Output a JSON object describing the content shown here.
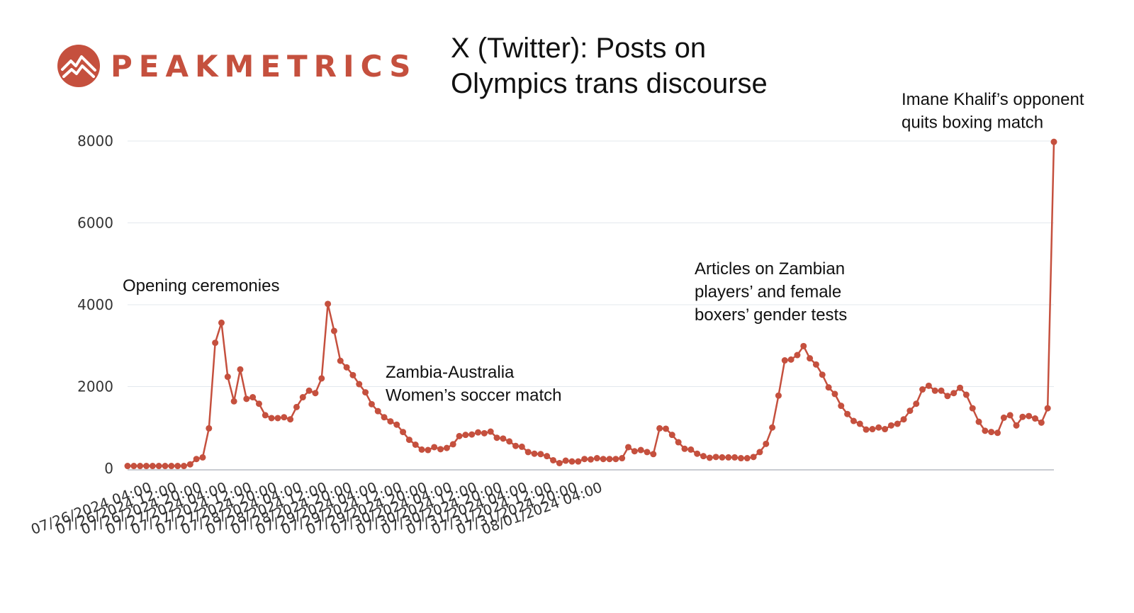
{
  "brand": {
    "name": "PEAKMETRICS",
    "logo_icon": "mountain-peak-icon",
    "accent_color": "#c5503e"
  },
  "chart_data": {
    "type": "line",
    "title_lines": [
      "X (Twitter): Posts on",
      "Olympics trans discourse"
    ],
    "xlabel": "",
    "ylabel": "",
    "ylim": [
      0,
      8000
    ],
    "y_ticks": [
      0,
      2000,
      4000,
      6000,
      8000
    ],
    "x_start": "07/26/2024 04:00",
    "x_step_hours": 2,
    "x_tick_labels": [
      "07/26/2024 04:00",
      "07/26/2024 12:00",
      "07/26/2024 20:00",
      "07/27/2024 04:00",
      "07/27/2024 12:00",
      "07/27/2024 20:00",
      "07/28/2024 04:00",
      "07/28/2024 12:00",
      "07/28/2024 20:00",
      "07/29/2024 04:00",
      "07/29/2024 12:00",
      "07/29/2024 20:00",
      "07/30/2024 04:00",
      "07/30/2024 12:00",
      "07/30/2024 20:00",
      "07/31/2024 04:00",
      "07/31/2024 12:00",
      "07/31/2024 20:00",
      "08/01/2024 04:00"
    ],
    "grid": true,
    "line_color": "#c5503e",
    "series": [
      {
        "values": [
          60,
          60,
          60,
          60,
          60,
          60,
          60,
          60,
          60,
          60,
          100,
          230,
          270,
          980,
          3070,
          3560,
          2240,
          1640,
          2420,
          1700,
          1740,
          1580,
          1300,
          1230,
          1230,
          1250,
          1200,
          1500,
          1740,
          1900,
          1840,
          2200,
          4020,
          3360,
          2630,
          2470,
          2280,
          2060,
          1860,
          1570,
          1400,
          1250,
          1150,
          1070,
          890,
          700,
          580,
          460,
          450,
          520,
          470,
          500,
          590,
          790,
          820,
          830,
          880,
          860,
          900,
          750,
          730,
          660,
          550,
          530,
          400,
          360,
          350,
          300,
          200,
          130,
          190,
          170,
          170,
          230,
          220,
          250,
          230,
          230,
          230,
          250,
          520,
          420,
          450,
          400,
          350,
          980,
          970,
          820,
          640,
          480,
          460,
          360,
          300,
          260,
          280,
          270,
          270,
          270,
          250,
          250,
          280,
          400,
          600,
          1000,
          1780,
          2640,
          2660,
          2770,
          2990,
          2690,
          2540,
          2290,
          1980,
          1820,
          1530,
          1330,
          1160,
          1090,
          950,
          960,
          1000,
          960,
          1050,
          1090,
          1200,
          1410,
          1580,
          1930,
          2020,
          1900,
          1900,
          1770,
          1840,
          1970,
          1800,
          1470,
          1140,
          920,
          890,
          870,
          1240,
          1300,
          1050,
          1260,
          1280,
          1220,
          1120,
          1470,
          7980
        ]
      }
    ],
    "annotations": [
      "Opening ceremonies",
      "Zambia-Australia\nWomen’s soccer match",
      "Articles on Zambian\nplayers’ and female\nboxers’ gender tests",
      "Imane Khalif’s opponent\nquits boxing match"
    ]
  }
}
